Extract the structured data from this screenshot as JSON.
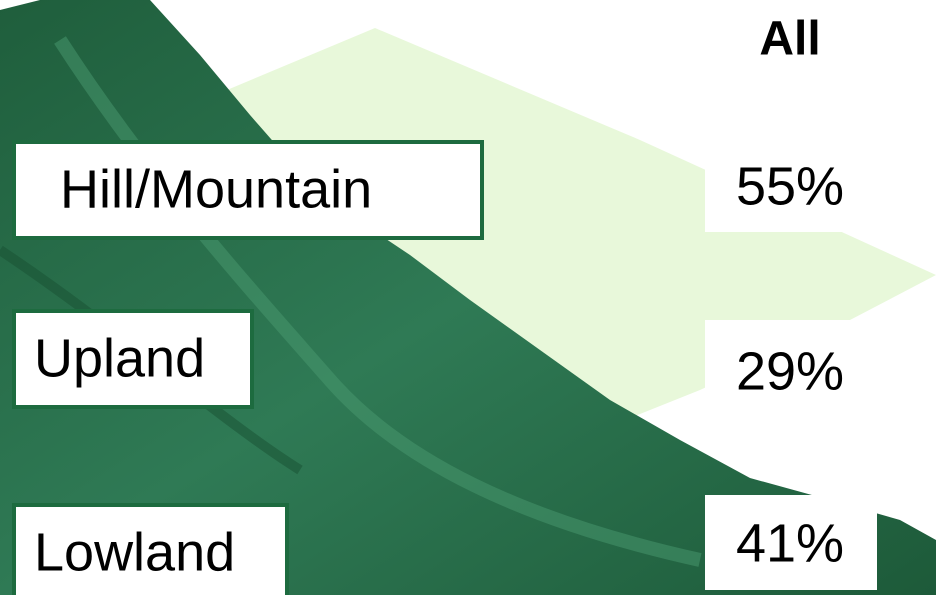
{
  "header": {
    "title": "All"
  },
  "rows": [
    {
      "label": "Hill/Mountain",
      "value": "55%"
    },
    {
      "label": "Upland",
      "value": "29%"
    },
    {
      "label": "Lowland",
      "value": "41%"
    }
  ]
}
